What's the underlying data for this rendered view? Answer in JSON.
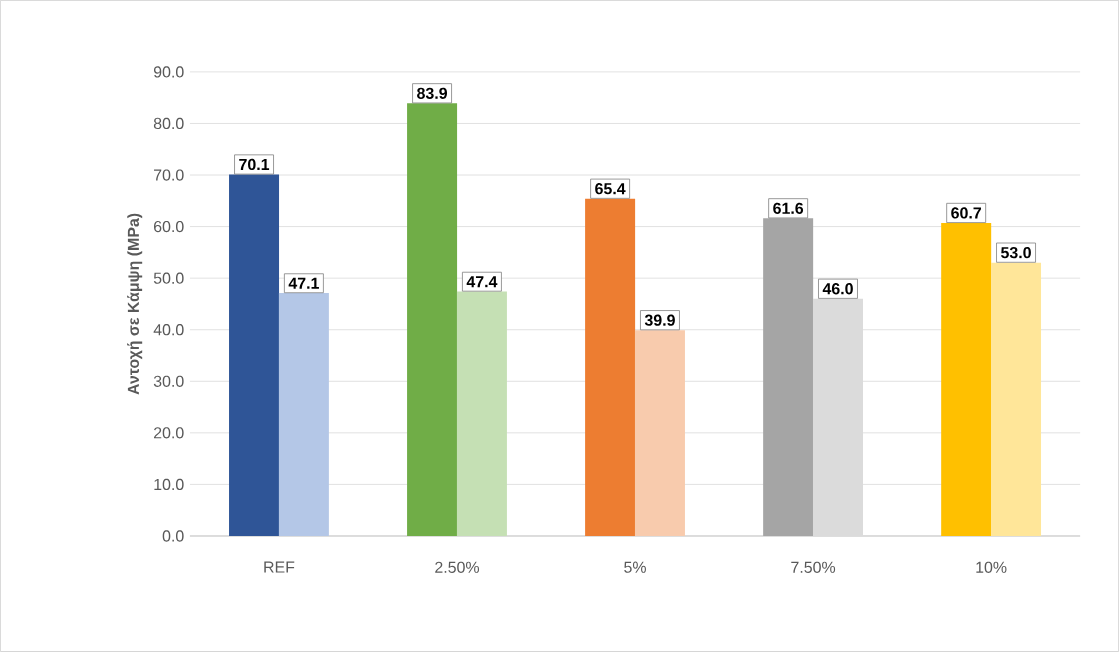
{
  "chart_data": {
    "type": "bar",
    "ylabel": "Αντοχή σε Κάμψη (MPa)",
    "categories": [
      "REF",
      "2.50%",
      "5%",
      "7.50%",
      "10%"
    ],
    "series": [
      {
        "colors": [
          "#2f5597",
          "#70ad47",
          "#ed7d31",
          "#a5a5a5",
          "#ffc000"
        ],
        "values": [
          70.1,
          83.9,
          65.4,
          61.6,
          60.7
        ],
        "value_labels": [
          "70.1",
          "83.9",
          "65.4",
          "61.6",
          "60.7"
        ]
      },
      {
        "colors": [
          "#b4c7e7",
          "#c5e0b4",
          "#f8cbad",
          "#dbdbdb",
          "#ffe699"
        ],
        "values": [
          47.1,
          47.4,
          39.9,
          46.0,
          53.0
        ],
        "value_labels": [
          "47.1",
          "47.4",
          "39.9",
          "46.0",
          "53.0"
        ]
      }
    ],
    "ylim": [
      0,
      90
    ],
    "yticks": [
      {
        "value": 0,
        "label": "0.0"
      },
      {
        "value": 10,
        "label": "10.0"
      },
      {
        "value": 20,
        "label": "20.0"
      },
      {
        "value": 30,
        "label": "30.0"
      },
      {
        "value": 40,
        "label": "40.0"
      },
      {
        "value": 50,
        "label": "50.0"
      },
      {
        "value": 60,
        "label": "60.0"
      },
      {
        "value": 70,
        "label": "70.0"
      },
      {
        "value": 80,
        "label": "80.0"
      },
      {
        "value": 90,
        "label": "90.0"
      }
    ],
    "grid": "y"
  }
}
